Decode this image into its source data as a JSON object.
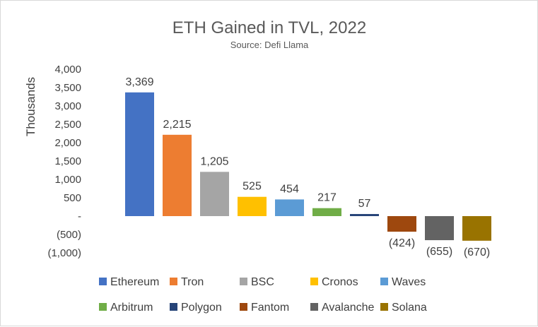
{
  "chart_data": {
    "type": "bar",
    "title": "ETH Gained in TVL, 2022",
    "subtitle": "Source: Defi Llama",
    "xlabel": "",
    "ylabel": "Thousands",
    "ylim": [
      -1000,
      4000
    ],
    "yticks": [
      4000,
      3500,
      3000,
      2500,
      2000,
      1500,
      1000,
      500,
      0,
      -500,
      -1000
    ],
    "ytick_labels": [
      "4,000",
      "3,500",
      "3,000",
      "2,500",
      "2,000",
      "1,500",
      "1,000",
      "500",
      "-",
      "(500)",
      "(1,000)"
    ],
    "grid": false,
    "legend_position": "bottom",
    "categories": [
      "Ethereum",
      "Tron",
      "BSC",
      "Cronos",
      "Waves",
      "Arbitrum",
      "Polygon",
      "Fantom",
      "Avalanche",
      "Solana"
    ],
    "values": [
      3369,
      2215,
      1205,
      525,
      454,
      217,
      57,
      -424,
      -655,
      -670
    ],
    "data_labels": [
      "3,369",
      "2,215",
      "1,205",
      "525",
      "454",
      "217",
      "57",
      "(424)",
      "(655)",
      "(670)"
    ],
    "colors": [
      "#4472c4",
      "#ed7d31",
      "#a5a5a5",
      "#ffc000",
      "#5b9bd5",
      "#70ad47",
      "#264478",
      "#9e480e",
      "#636363",
      "#997300"
    ]
  }
}
